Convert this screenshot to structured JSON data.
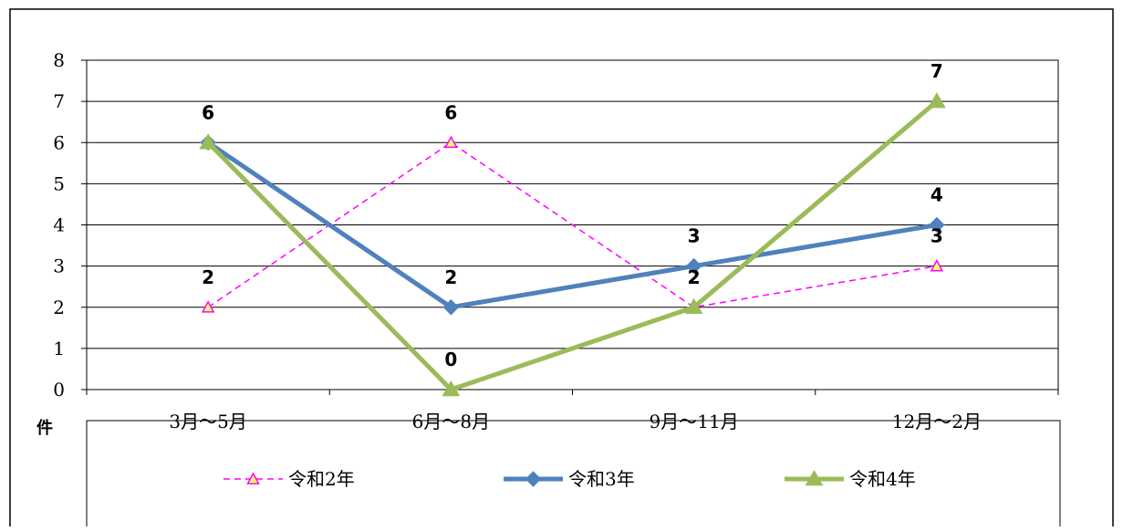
{
  "chart_data": {
    "type": "line",
    "categories": [
      "3月～5月",
      "6月～8月",
      "9月～11月",
      "12月～2月"
    ],
    "series": [
      {
        "name": "令和2年",
        "values": [
          2,
          6,
          2,
          3
        ],
        "color": "#ff00ff",
        "marker": "triangle-open",
        "line": "dashed",
        "marker_fill": "#ffff66"
      },
      {
        "name": "令和3年",
        "values": [
          6,
          2,
          3,
          4
        ],
        "color": "#4f81bd",
        "marker": "diamond",
        "line": "solid"
      },
      {
        "name": "令和4年",
        "values": [
          6,
          0,
          2,
          7
        ],
        "color": "#9bbb59",
        "marker": "triangle",
        "line": "solid"
      }
    ],
    "ylim": [
      0,
      8
    ],
    "yticks": [
      0,
      1,
      2,
      3,
      4,
      5,
      6,
      7,
      8
    ],
    "ylabel": "件",
    "grid": true,
    "legend": "bottom"
  }
}
